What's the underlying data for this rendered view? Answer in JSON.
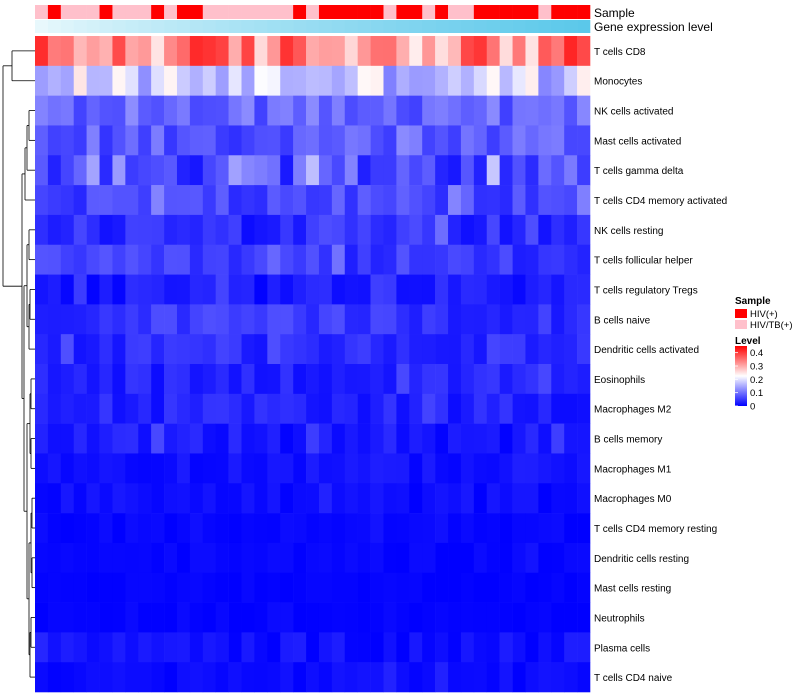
{
  "chart_data": {
    "type": "heatmap",
    "title": "",
    "annotation_labels": {
      "sample": "Sample",
      "gene_expression": "Gene expression level"
    },
    "rows": [
      "T cells CD8",
      "Monocytes",
      "NK cells activated",
      "Mast cells activated",
      "T cells gamma delta",
      "T cells CD4 memory activated",
      "NK cells resting",
      "T cells follicular helper",
      "T cells regulatory  Tregs",
      "B cells naive",
      "Dendritic cells activated",
      "Eosinophils",
      "Macrophages M2",
      "B cells memory",
      "Macrophages M1",
      "Macrophages M0",
      "T cells CD4 memory resting",
      "Dendritic cells resting",
      "Mast cells resting",
      "Neutrophils",
      "Plasma cells",
      "T cells CD4 naive"
    ],
    "n_samples": 43,
    "sample_groups": [
      "pk",
      "r",
      "pk",
      "pk",
      "pk",
      "r",
      "pk",
      "pk",
      "pk",
      "r",
      "pk",
      "r",
      "r",
      "pk",
      "pk",
      "pk",
      "pk",
      "pk",
      "pk",
      "pk",
      "r",
      "pk",
      "r",
      "r",
      "r",
      "r",
      "r",
      "pk",
      "r",
      "r",
      "pk",
      "r",
      "pk",
      "pk",
      "r",
      "r",
      "r",
      "r",
      "r",
      "pk",
      "r",
      "r",
      "r"
    ],
    "row_means": [
      0.33,
      0.18,
      0.09,
      0.08,
      0.07,
      0.06,
      0.04,
      0.05,
      0.02,
      0.045,
      0.035,
      0.03,
      0.03,
      0.02,
      0.015,
      0.01,
      0.005,
      0.005,
      0.003,
      0.002,
      0.012,
      0.008
    ],
    "row_spread": [
      0.09,
      0.07,
      0.035,
      0.04,
      0.05,
      0.03,
      0.03,
      0.025,
      0.02,
      0.025,
      0.02,
      0.02,
      0.02,
      0.02,
      0.012,
      0.012,
      0.006,
      0.006,
      0.004,
      0.004,
      0.015,
      0.01
    ],
    "legend": {
      "sample_title": "Sample",
      "sample_entries": [
        {
          "label": "HIV(+)",
          "color": "#ff0000"
        },
        {
          "label": "HIV/TB(+)",
          "color": "#ffc0cb"
        }
      ],
      "level_title": "Level",
      "level_ticks": [
        0.4,
        0.3,
        0.2,
        0.1,
        0
      ],
      "level_range": [
        0,
        0.45
      ]
    },
    "colors": {
      "low": "#0000ff",
      "mid": "#ffffff",
      "high": "#ff0000",
      "gene_low": "#e8f8fc",
      "gene_high": "#5bc8ea"
    }
  }
}
